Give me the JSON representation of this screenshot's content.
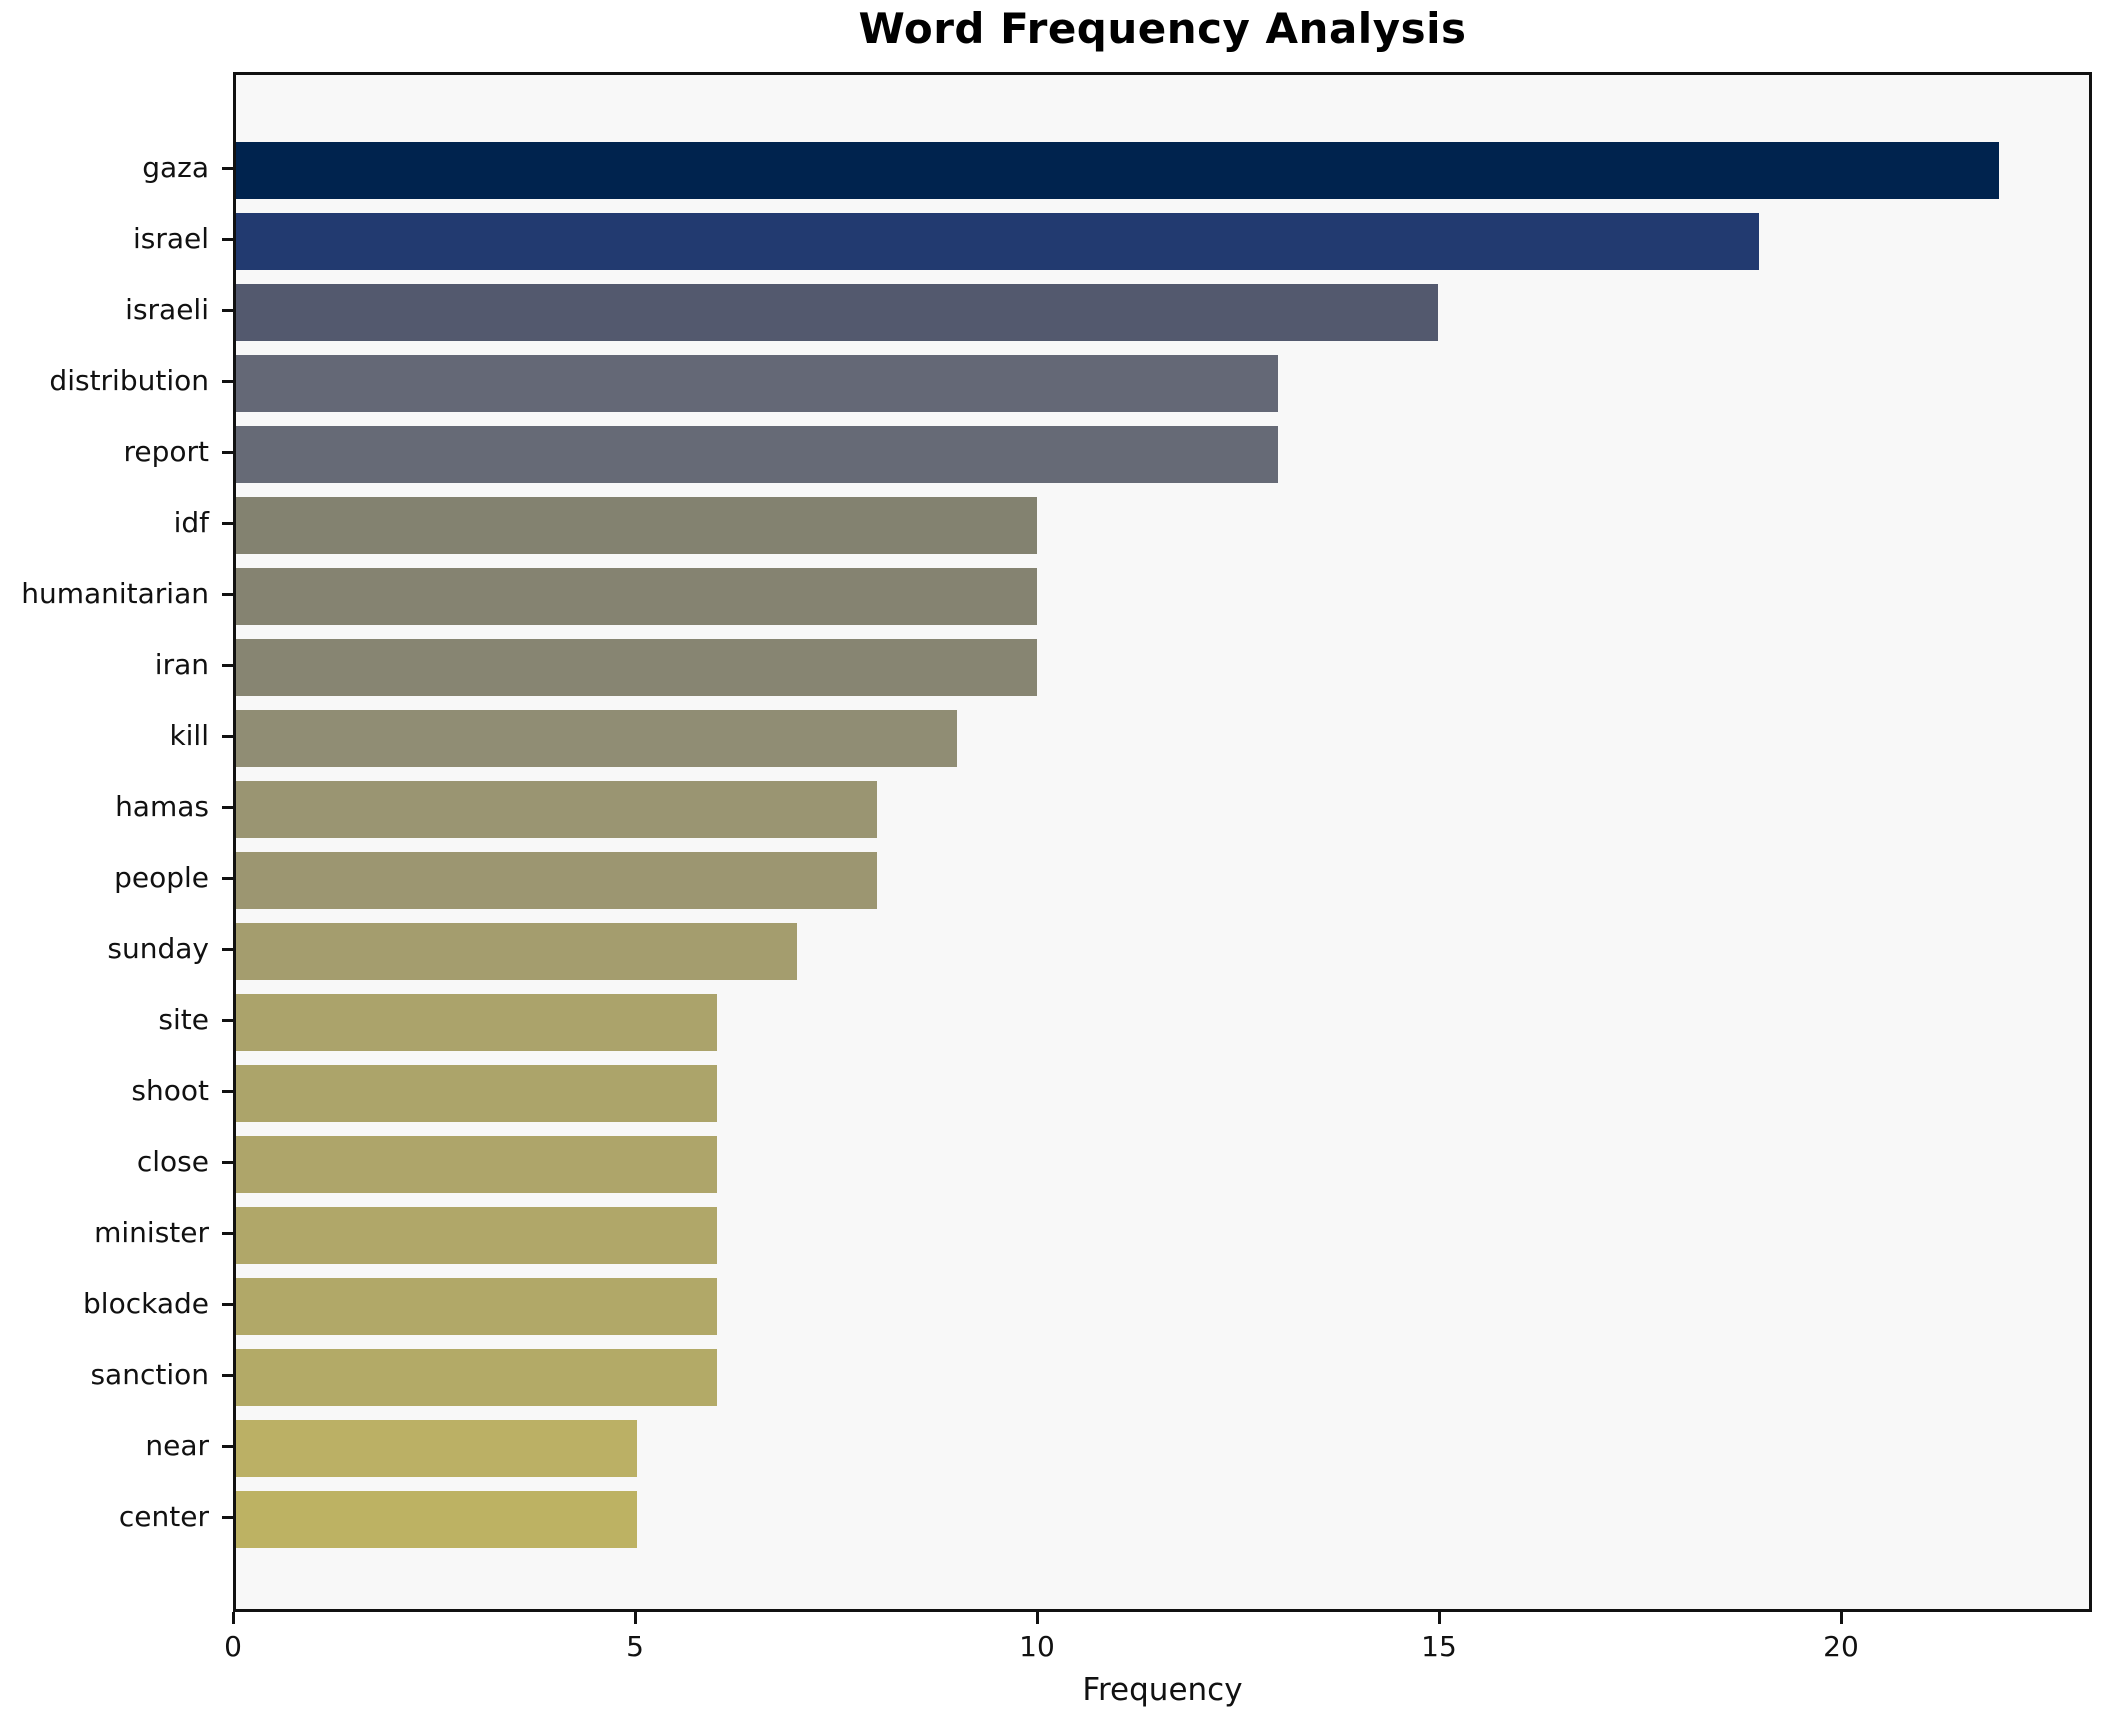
{
  "title": "Word Frequency Analysis",
  "axes": {
    "xlabel": "Frequency",
    "x_tick_labels": [
      "0",
      "5",
      "10",
      "15",
      "20"
    ]
  },
  "chart_data": {
    "type": "bar",
    "orientation": "horizontal",
    "title": "Word Frequency Analysis",
    "xlabel": "Frequency",
    "ylabel": "",
    "categories": [
      "gaza",
      "israel",
      "israeli",
      "distribution",
      "report",
      "idf",
      "humanitarian",
      "iran",
      "kill",
      "hamas",
      "people",
      "sunday",
      "site",
      "shoot",
      "close",
      "minister",
      "blockade",
      "sanction",
      "near",
      "center"
    ],
    "values": [
      22,
      19,
      15,
      13,
      13,
      10,
      10,
      10,
      9,
      8,
      8,
      7,
      6,
      6,
      6,
      6,
      6,
      6,
      5,
      5
    ],
    "bar_colors": [
      "#00234e",
      "#223a70",
      "#53596e",
      "#646876",
      "#666a76",
      "#838270",
      "#858371",
      "#878572",
      "#908d74",
      "#9a9572",
      "#9c9671",
      "#a49d6e",
      "#aba36b",
      "#aca46a",
      "#aea56a",
      "#b0a769",
      "#b1a868",
      "#b3aa67",
      "#bbb065",
      "#bdb263"
    ],
    "xlim": [
      0,
      23.12
    ],
    "x_ticks": [
      0,
      5,
      10,
      15,
      20
    ],
    "grid": false,
    "legend": null,
    "plot_background": "#f8f8f8",
    "frame_color": "#111111",
    "colormap": "cividis"
  }
}
